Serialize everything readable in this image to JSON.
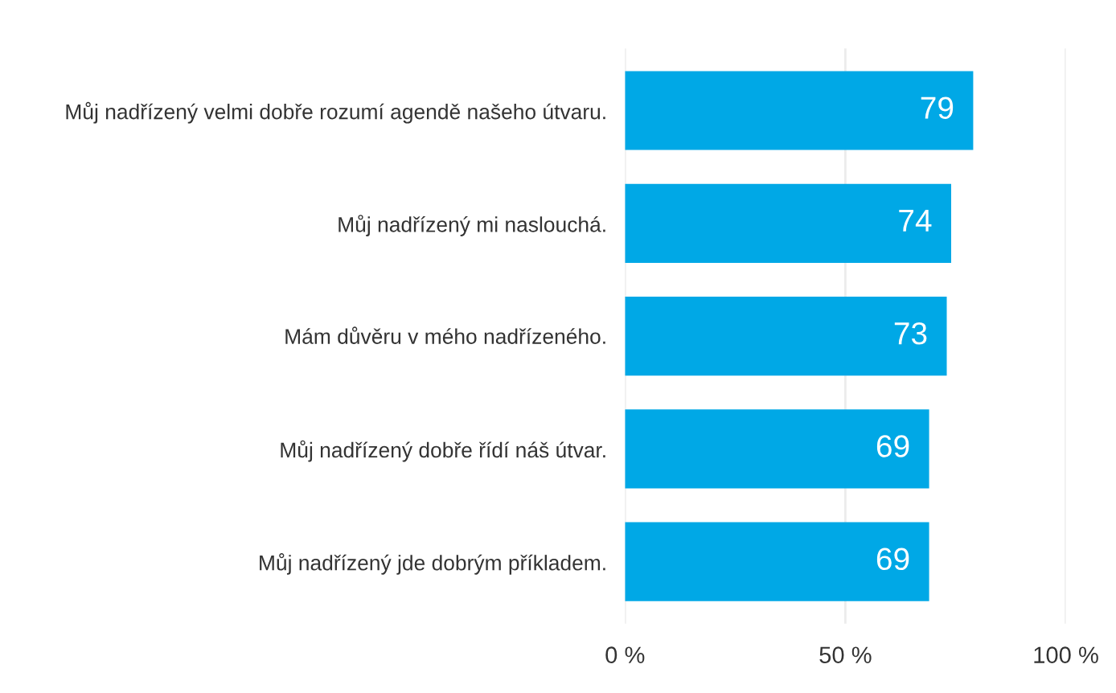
{
  "chart_data": {
    "type": "bar",
    "orientation": "horizontal",
    "categories": [
      "Můj nadřízený velmi dobře rozumí agendě našeho útvaru.",
      "Můj nadřízený mi naslouchá.",
      "Mám důvěru v mého nadřízeného.",
      "Můj nadřízený dobře řídí náš útvar.",
      "Můj nadřízený jde dobrým příkladem."
    ],
    "values": [
      79,
      74,
      73,
      69,
      69
    ],
    "color": "#00a8e6",
    "data_labels": true,
    "xlim": [
      0,
      100
    ],
    "xticks": [
      {
        "value": 0,
        "label": "0 %"
      },
      {
        "value": 50,
        "label": "50 %"
      },
      {
        "value": 100,
        "label": "100 %"
      }
    ],
    "grid": "x",
    "legend": false
  }
}
